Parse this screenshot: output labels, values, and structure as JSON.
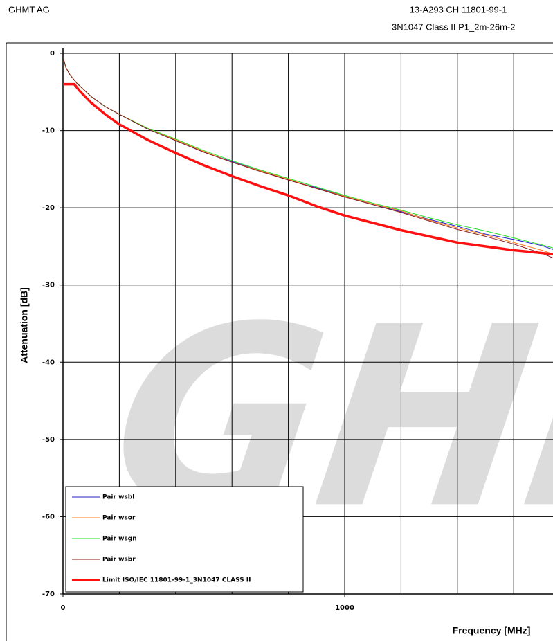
{
  "header": {
    "company": "GHMT AG",
    "report": "13-A293 CH 11801-99-1",
    "configuration": "3N1047 Class II P1_2m-26m-2"
  },
  "chart_data": {
    "type": "line",
    "watermark": "GHM",
    "xlabel": "Frequency [MHz]",
    "ylabel": "Attenuation [dB]",
    "xlim": [
      0,
      1740
    ],
    "xticks": [
      0,
      1000
    ],
    "xgrid": [
      0,
      200,
      400,
      600,
      800,
      1000,
      1200,
      1400,
      1600
    ],
    "ylim": [
      -70,
      0
    ],
    "yticks": [
      0,
      -10,
      -20,
      -30,
      -40,
      -50,
      -60,
      -70
    ],
    "grid": true,
    "legend": "lower left",
    "series": [
      {
        "name": "Pair wsbl",
        "color": "#1f1fc8",
        "width": 1,
        "x": [
          1,
          10,
          25,
          50,
          100,
          150,
          200,
          300,
          400,
          500,
          600,
          700,
          800,
          900,
          1000,
          1100,
          1200,
          1300,
          1400,
          1500,
          1600,
          1700,
          1740
        ],
        "values": [
          -0.6,
          -1.8,
          -2.8,
          -3.9,
          -5.6,
          -6.9,
          -7.9,
          -9.8,
          -11.3,
          -12.8,
          -14.0,
          -15.2,
          -16.4,
          -17.4,
          -18.5,
          -19.6,
          -20.5,
          -21.5,
          -22.4,
          -23.4,
          -24.1,
          -24.9,
          -25.4
        ]
      },
      {
        "name": "Pair wsor",
        "color": "#ff7a1a",
        "width": 1,
        "x": [
          1,
          10,
          25,
          50,
          100,
          150,
          200,
          300,
          400,
          500,
          600,
          700,
          800,
          900,
          1000,
          1100,
          1200,
          1300,
          1400,
          1500,
          1600,
          1700,
          1740
        ],
        "values": [
          -0.6,
          -1.8,
          -2.8,
          -3.9,
          -5.6,
          -6.9,
          -7.9,
          -9.7,
          -11.2,
          -12.7,
          -14.1,
          -15.2,
          -16.3,
          -17.5,
          -18.5,
          -19.5,
          -20.4,
          -21.6,
          -22.6,
          -23.5,
          -24.5,
          -25.5,
          -26.0
        ]
      },
      {
        "name": "Pair wsgn",
        "color": "#22dd22",
        "width": 1,
        "x": [
          1,
          10,
          25,
          50,
          100,
          150,
          200,
          300,
          400,
          500,
          600,
          700,
          800,
          900,
          1000,
          1100,
          1200,
          1300,
          1400,
          1500,
          1600,
          1700,
          1740
        ],
        "values": [
          -0.6,
          -1.8,
          -2.8,
          -3.9,
          -5.6,
          -6.9,
          -7.9,
          -9.7,
          -11.1,
          -12.6,
          -13.9,
          -15.1,
          -16.2,
          -17.3,
          -18.4,
          -19.4,
          -20.3,
          -21.3,
          -22.2,
          -23.0,
          -23.9,
          -24.8,
          -25.2
        ]
      },
      {
        "name": "Pair wsbr",
        "color": "#8b1a1a",
        "width": 1,
        "x": [
          1,
          10,
          25,
          50,
          100,
          150,
          200,
          300,
          400,
          500,
          600,
          700,
          800,
          900,
          1000,
          1100,
          1200,
          1300,
          1400,
          1500,
          1600,
          1700,
          1740
        ],
        "values": [
          -0.6,
          -1.8,
          -2.8,
          -3.9,
          -5.6,
          -6.9,
          -7.9,
          -9.8,
          -11.3,
          -12.8,
          -14.1,
          -15.3,
          -16.4,
          -17.5,
          -18.6,
          -19.6,
          -20.6,
          -21.7,
          -22.8,
          -23.7,
          -24.7,
          -25.9,
          -26.5
        ]
      },
      {
        "name": "Limit ISO/IEC 11801-99-1_3N1047 CLASS II",
        "color": "#ff1010",
        "width": 3.5,
        "x": [
          0,
          40,
          60,
          100,
          150,
          200,
          300,
          400,
          500,
          600,
          700,
          800,
          900,
          1000,
          1200,
          1400,
          1600,
          1740
        ],
        "values": [
          -4,
          -4,
          -4.9,
          -6.4,
          -7.9,
          -9.2,
          -11.2,
          -12.9,
          -14.5,
          -15.9,
          -17.2,
          -18.4,
          -19.8,
          -21.0,
          -22.9,
          -24.5,
          -25.5,
          -26.0
        ]
      }
    ]
  }
}
